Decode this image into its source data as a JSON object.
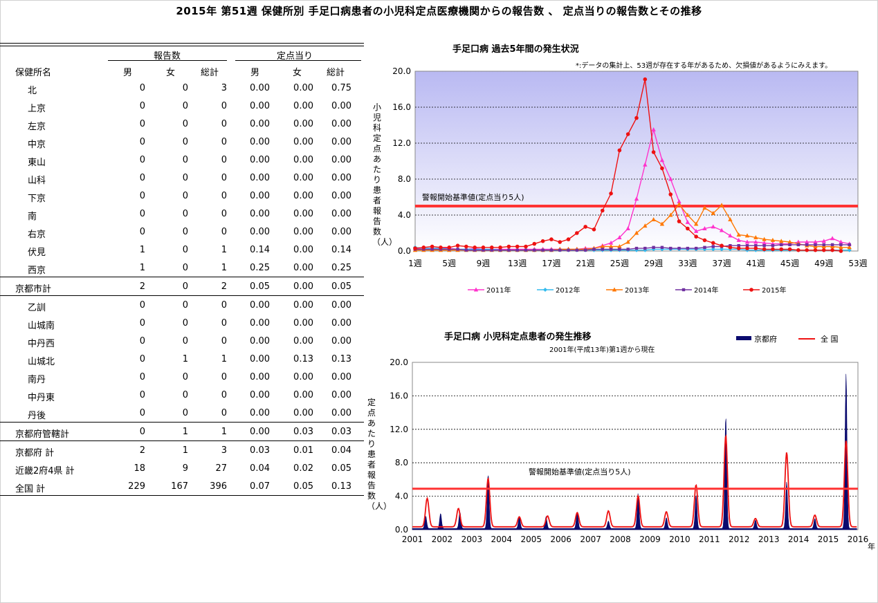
{
  "page_title": "2015年 第51週 保健所別 手足口病患者の小児科定点医療機関からの報告数 、 定点当りの報告数とその推移",
  "table": {
    "group_headers": [
      "報告数",
      "定点当り"
    ],
    "columns": [
      "保健所名",
      "男",
      "女",
      "総計",
      "男",
      "女",
      "総計"
    ],
    "rows": [
      {
        "name": "北",
        "cells": [
          "0",
          "0",
          "3",
          "0.00",
          "0.00",
          "0.75"
        ],
        "indent": true
      },
      {
        "name": "上京",
        "cells": [
          "0",
          "0",
          "0",
          "0.00",
          "0.00",
          "0.00"
        ],
        "indent": true
      },
      {
        "name": "左京",
        "cells": [
          "0",
          "0",
          "0",
          "0.00",
          "0.00",
          "0.00"
        ],
        "indent": true
      },
      {
        "name": "中京",
        "cells": [
          "0",
          "0",
          "0",
          "0.00",
          "0.00",
          "0.00"
        ],
        "indent": true
      },
      {
        "name": "東山",
        "cells": [
          "0",
          "0",
          "0",
          "0.00",
          "0.00",
          "0.00"
        ],
        "indent": true
      },
      {
        "name": "山科",
        "cells": [
          "0",
          "0",
          "0",
          "0.00",
          "0.00",
          "0.00"
        ],
        "indent": true
      },
      {
        "name": "下京",
        "cells": [
          "0",
          "0",
          "0",
          "0.00",
          "0.00",
          "0.00"
        ],
        "indent": true
      },
      {
        "name": "南",
        "cells": [
          "0",
          "0",
          "0",
          "0.00",
          "0.00",
          "0.00"
        ],
        "indent": true
      },
      {
        "name": "右京",
        "cells": [
          "0",
          "0",
          "0",
          "0.00",
          "0.00",
          "0.00"
        ],
        "indent": true
      },
      {
        "name": "伏見",
        "cells": [
          "1",
          "0",
          "1",
          "0.14",
          "0.00",
          "0.14"
        ],
        "indent": true
      },
      {
        "name": "西京",
        "cells": [
          "1",
          "0",
          "1",
          "0.25",
          "0.00",
          "0.25"
        ],
        "indent": true
      },
      {
        "name": "京都市計",
        "cells": [
          "2",
          "0",
          "2",
          "0.05",
          "0.00",
          "0.05"
        ],
        "indent": false
      },
      {
        "name": "乙訓",
        "cells": [
          "0",
          "0",
          "0",
          "0.00",
          "0.00",
          "0.00"
        ],
        "indent": true
      },
      {
        "name": "山城南",
        "cells": [
          "0",
          "0",
          "0",
          "0.00",
          "0.00",
          "0.00"
        ],
        "indent": true
      },
      {
        "name": "中丹西",
        "cells": [
          "0",
          "0",
          "0",
          "0.00",
          "0.00",
          "0.00"
        ],
        "indent": true
      },
      {
        "name": "山城北",
        "cells": [
          "0",
          "1",
          "1",
          "0.00",
          "0.13",
          "0.13"
        ],
        "indent": true
      },
      {
        "name": "南丹",
        "cells": [
          "0",
          "0",
          "0",
          "0.00",
          "0.00",
          "0.00"
        ],
        "indent": true
      },
      {
        "name": "中丹東",
        "cells": [
          "0",
          "0",
          "0",
          "0.00",
          "0.00",
          "0.00"
        ],
        "indent": true
      },
      {
        "name": "丹後",
        "cells": [
          "0",
          "0",
          "0",
          "0.00",
          "0.00",
          "0.00"
        ],
        "indent": true
      },
      {
        "name": "京都府管轄計",
        "cells": [
          "0",
          "1",
          "1",
          "0.00",
          "0.03",
          "0.03"
        ],
        "indent": false
      },
      {
        "name": "京都府 計",
        "cells": [
          "2",
          "1",
          "3",
          "0.03",
          "0.01",
          "0.04"
        ],
        "indent": false
      },
      {
        "name": "近畿2府4県 計",
        "cells": [
          "18",
          "9",
          "27",
          "0.04",
          "0.02",
          "0.05"
        ],
        "indent": false
      },
      {
        "name": "全国 計",
        "cells": [
          "229",
          "167",
          "396",
          "0.07",
          "0.05",
          "0.13"
        ],
        "indent": false
      }
    ]
  },
  "chart_data": [
    {
      "type": "line",
      "title": "手足口病 過去5年間の発生状況",
      "note": "*:データの集計上、53週が存在する年があるため、欠損値があるようにみえます。",
      "ylabel": "小児科定点あたり患者報告数（人）",
      "threshold_label": "警報開始基準値(定点当り5人)",
      "threshold": 5,
      "ylim": [
        0,
        20
      ],
      "yticks": [
        "0.0",
        "4.0",
        "8.0",
        "12.0",
        "16.0",
        "20.0"
      ],
      "xlim": [
        1,
        53
      ],
      "xticks": [
        "1週",
        "5週",
        "9週",
        "13週",
        "17週",
        "21週",
        "25週",
        "29週",
        "33週",
        "37週",
        "41週",
        "45週",
        "49週",
        "53週"
      ],
      "series": [
        {
          "name": "2011年",
          "color": "#ff33cc",
          "marker": "triangle",
          "x": [
            1,
            2,
            3,
            4,
            5,
            6,
            7,
            8,
            9,
            10,
            11,
            12,
            13,
            14,
            15,
            16,
            17,
            18,
            19,
            20,
            21,
            22,
            23,
            24,
            25,
            26,
            27,
            28,
            29,
            30,
            31,
            32,
            33,
            34,
            35,
            36,
            37,
            38,
            39,
            40,
            41,
            42,
            43,
            44,
            45,
            46,
            47,
            48,
            49,
            50,
            51,
            52
          ],
          "y": [
            0.3,
            0.3,
            0.3,
            0.3,
            0.3,
            0.2,
            0.2,
            0.3,
            0.2,
            0.2,
            0.2,
            0.2,
            0.2,
            0.2,
            0.2,
            0.2,
            0.2,
            0.2,
            0.2,
            0.2,
            0.3,
            0.3,
            0.6,
            0.9,
            1.5,
            2.5,
            5.8,
            9.6,
            13.5,
            10.1,
            8.0,
            5.5,
            3.2,
            2.2,
            2.5,
            2.7,
            2.3,
            1.7,
            1.2,
            1.0,
            1.0,
            0.9,
            0.8,
            0.8,
            0.8,
            1.0,
            1.0,
            1.0,
            1.1,
            1.4,
            1.0,
            0.8
          ]
        },
        {
          "name": "2012年",
          "color": "#33bbee",
          "marker": "diamond",
          "x": [
            1,
            2,
            3,
            4,
            5,
            6,
            7,
            8,
            9,
            10,
            11,
            12,
            13,
            14,
            15,
            16,
            17,
            18,
            19,
            20,
            21,
            22,
            23,
            24,
            25,
            26,
            27,
            28,
            29,
            30,
            31,
            32,
            33,
            34,
            35,
            36,
            37,
            38,
            39,
            40,
            41,
            42,
            43,
            44,
            45,
            46,
            47,
            48,
            49,
            50,
            51,
            52
          ],
          "y": [
            0.4,
            0.3,
            0.3,
            0.3,
            0.2,
            0.2,
            0.2,
            0.2,
            0.2,
            0.2,
            0.1,
            0.1,
            0.1,
            0.1,
            0.1,
            0.1,
            0.1,
            0.1,
            0.1,
            0.1,
            0.1,
            0.1,
            0.1,
            0.1,
            0.1,
            0.1,
            0.1,
            0.1,
            0.2,
            0.2,
            0.2,
            0.2,
            0.2,
            0.2,
            0.2,
            0.2,
            0.2,
            0.2,
            0.2,
            0.1,
            0.1,
            0.1,
            0.1,
            0.1,
            0.1,
            0.1,
            0.1,
            0.1,
            0.1,
            0.1,
            0.1,
            0.1
          ]
        },
        {
          "name": "2013年",
          "color": "#ff7700",
          "marker": "triangle",
          "x": [
            1,
            2,
            3,
            4,
            5,
            6,
            7,
            8,
            9,
            10,
            11,
            12,
            13,
            14,
            15,
            16,
            17,
            18,
            19,
            20,
            21,
            22,
            23,
            24,
            25,
            26,
            27,
            28,
            29,
            30,
            31,
            32,
            33,
            34,
            35,
            36,
            37,
            38,
            39,
            40,
            41,
            42,
            43,
            44,
            45,
            46,
            47,
            48,
            49,
            50,
            51,
            52
          ],
          "y": [
            0.1,
            0.1,
            0.1,
            0.1,
            0.1,
            0.1,
            0.1,
            0.1,
            0.1,
            0.1,
            0.1,
            0.1,
            0.1,
            0.1,
            0.1,
            0.1,
            0.1,
            0.2,
            0.2,
            0.2,
            0.2,
            0.3,
            0.5,
            0.5,
            0.5,
            1.0,
            2.0,
            2.8,
            3.5,
            3.0,
            4.0,
            5.2,
            4.0,
            3.0,
            4.8,
            4.2,
            5.1,
            3.5,
            1.8,
            1.7,
            1.5,
            1.3,
            1.2,
            1.1,
            1.0,
            0.8,
            0.6,
            0.5,
            0.5,
            0.5,
            0.4,
            0.4
          ]
        },
        {
          "name": "2014年",
          "color": "#7030a0",
          "marker": "square",
          "x": [
            1,
            2,
            3,
            4,
            5,
            6,
            7,
            8,
            9,
            10,
            11,
            12,
            13,
            14,
            15,
            16,
            17,
            18,
            19,
            20,
            21,
            22,
            23,
            24,
            25,
            26,
            27,
            28,
            29,
            30,
            31,
            32,
            33,
            34,
            35,
            36,
            37,
            38,
            39,
            40,
            41,
            42,
            43,
            44,
            45,
            46,
            47,
            48,
            49,
            50,
            51,
            52
          ],
          "y": [
            0.2,
            0.2,
            0.2,
            0.2,
            0.2,
            0.2,
            0.1,
            0.1,
            0.1,
            0.1,
            0.1,
            0.1,
            0.1,
            0.1,
            0.1,
            0.1,
            0.1,
            0.1,
            0.1,
            0.1,
            0.1,
            0.2,
            0.2,
            0.2,
            0.2,
            0.2,
            0.3,
            0.3,
            0.4,
            0.4,
            0.3,
            0.3,
            0.3,
            0.3,
            0.4,
            0.5,
            0.5,
            0.6,
            0.6,
            0.6,
            0.6,
            0.6,
            0.6,
            0.7,
            0.7,
            0.7,
            0.7,
            0.7,
            0.7,
            0.7,
            0.7,
            0.7
          ]
        },
        {
          "name": "2015年",
          "color": "#ee1111",
          "marker": "circle",
          "x": [
            1,
            2,
            3,
            4,
            5,
            6,
            7,
            8,
            9,
            10,
            11,
            12,
            13,
            14,
            15,
            16,
            17,
            18,
            19,
            20,
            21,
            22,
            23,
            24,
            25,
            26,
            27,
            28,
            29,
            30,
            31,
            32,
            33,
            34,
            35,
            36,
            37,
            38,
            39,
            40,
            41,
            42,
            43,
            44,
            45,
            46,
            47,
            48,
            49,
            50,
            51
          ],
          "y": [
            0.3,
            0.4,
            0.5,
            0.4,
            0.4,
            0.6,
            0.5,
            0.4,
            0.4,
            0.4,
            0.4,
            0.5,
            0.5,
            0.5,
            0.8,
            1.1,
            1.3,
            1.0,
            1.3,
            2.0,
            2.7,
            2.4,
            4.5,
            6.4,
            11.2,
            13.0,
            14.8,
            19.1,
            11.0,
            9.2,
            6.3,
            3.3,
            2.5,
            1.6,
            1.2,
            0.9,
            0.6,
            0.4,
            0.3,
            0.3,
            0.3,
            0.2,
            0.2,
            0.2,
            0.2,
            0.1,
            0.1,
            0.1,
            0.1,
            0.1,
            0.0
          ]
        }
      ]
    },
    {
      "type": "area",
      "title": "手足口病 小児科定点患者の発生推移",
      "subtitle": "2001年(平成13年)第1週から現在",
      "ylabel": "定点あたり患者報告数（人）",
      "threshold_label": "警報開始基準値(定点当り5人)",
      "threshold": 4.9,
      "ylim": [
        0,
        20
      ],
      "yticks": [
        "0.0",
        "4.0",
        "8.0",
        "12.0",
        "16.0",
        "20.0"
      ],
      "xlim": [
        2001,
        2016
      ],
      "xticks": [
        "2001",
        "2002",
        "2003",
        "2004",
        "2005",
        "2006",
        "2007",
        "2008",
        "2009",
        "2010",
        "2011",
        "2012",
        "2013",
        "2014",
        "2015",
        "2016"
      ],
      "xunit": "年",
      "series": [
        {
          "name": "京都府",
          "color": "#0a0a6e",
          "type": "area",
          "peaks": [
            [
              2001.45,
              1.5
            ],
            [
              2001.95,
              1.8
            ],
            [
              2002.6,
              2.0
            ],
            [
              2003.55,
              6.5
            ],
            [
              2004.6,
              1.4
            ],
            [
              2005.5,
              1.4
            ],
            [
              2006.55,
              2.0
            ],
            [
              2007.6,
              0.9
            ],
            [
              2008.6,
              4.2
            ],
            [
              2009.55,
              1.3
            ],
            [
              2010.55,
              4.0
            ],
            [
              2011.55,
              13.5
            ],
            [
              2012.55,
              1.0
            ],
            [
              2013.6,
              5.6
            ],
            [
              2014.55,
              1.2
            ],
            [
              2015.6,
              18.6
            ]
          ]
        },
        {
          "name": "全 国",
          "color": "#ee1111",
          "type": "line",
          "peaks": [
            [
              2001.5,
              3.4
            ],
            [
              2002.55,
              2.2
            ],
            [
              2003.55,
              5.8
            ],
            [
              2004.6,
              1.2
            ],
            [
              2005.55,
              1.3
            ],
            [
              2006.55,
              1.7
            ],
            [
              2007.6,
              1.9
            ],
            [
              2008.6,
              3.7
            ],
            [
              2009.55,
              1.8
            ],
            [
              2010.55,
              5.0
            ],
            [
              2011.55,
              10.9
            ],
            [
              2012.55,
              1.0
            ],
            [
              2013.6,
              8.9
            ],
            [
              2014.55,
              1.4
            ],
            [
              2015.6,
              10.3
            ]
          ]
        }
      ]
    }
  ]
}
